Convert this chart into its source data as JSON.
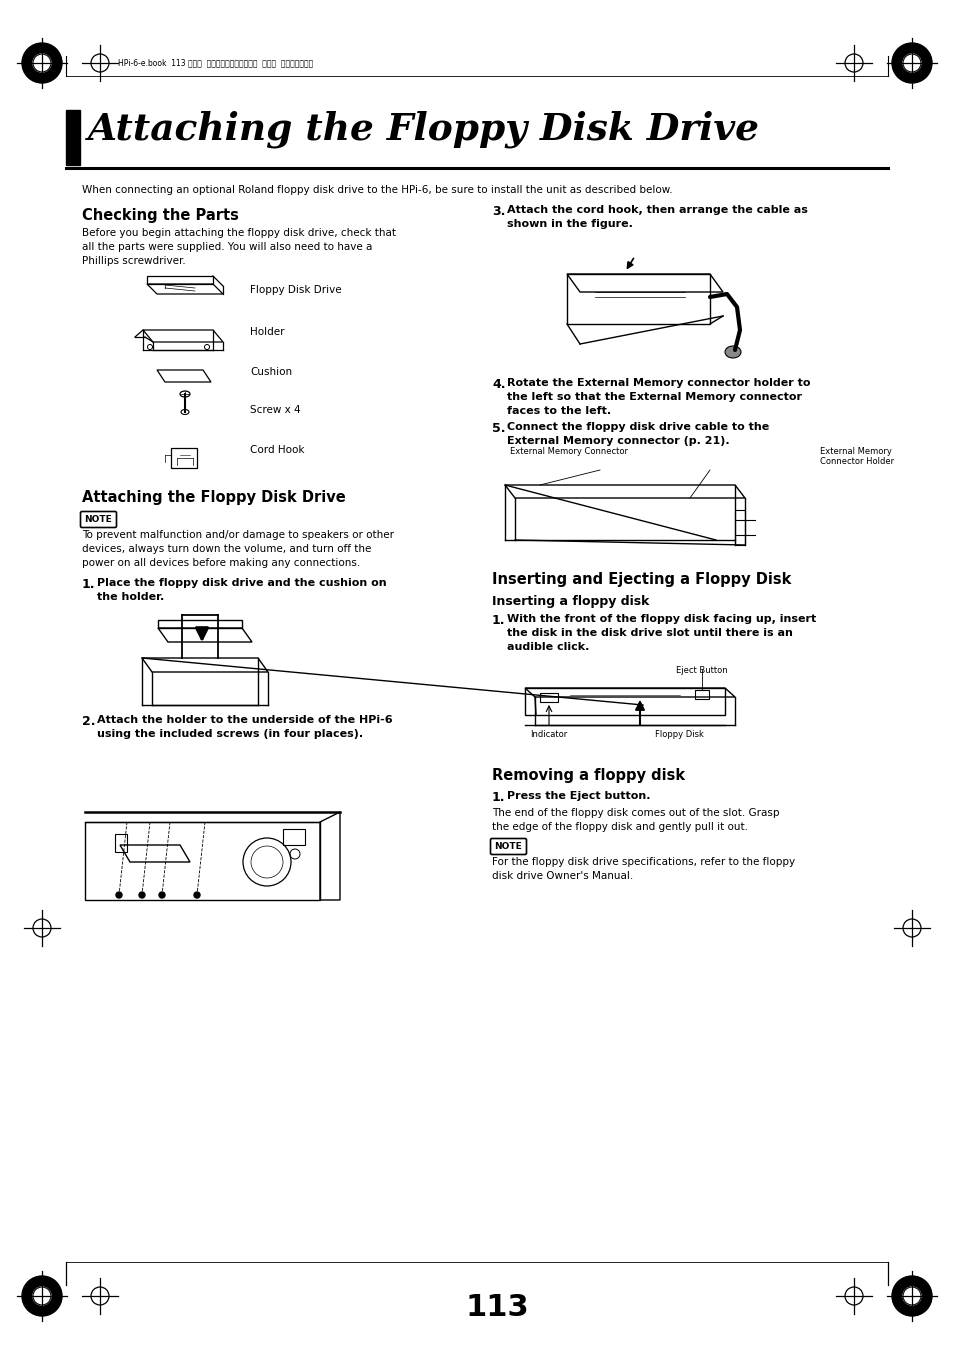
{
  "page_title": "Attaching the Floppy Disk Drive",
  "header_text": "HPi-6-e.book  113 ページ  ２００５年１１月１５日  火曜日  午後３時４９分",
  "intro_text": "When connecting an optional Roland floppy disk drive to the HPi-6, be sure to install the unit as described below.",
  "section1_title": "Checking the Parts",
  "section1_body": "Before you begin attaching the floppy disk drive, check that\nall the parts were supplied. You will also need to have a\nPhillips screwdriver.",
  "parts_list": [
    "Floppy Disk Drive",
    "Holder",
    "Cushion",
    "Screw x 4",
    "Cord Hook"
  ],
  "section2_title": "Attaching the Floppy Disk Drive",
  "note_text": "To prevent malfunction and/or damage to speakers or other\ndevices, always turn down the volume, and turn off the\npower on all devices before making any connections.",
  "step1_text": "Place the floppy disk drive and the cushion on\nthe holder.",
  "step2_text": "Attach the holder to the underside of the HPi-6\nusing the included screws (in four places).",
  "step3_text": "Attach the cord hook, then arrange the cable as\nshown in the figure.",
  "step4_text": "Rotate the External Memory connector holder to\nthe left so that the External Memory connector\nfaces to the left.",
  "step5_text": "Connect the floppy disk drive cable to the\nExternal Memory connector (p. 21).",
  "ext_mem_label": "External Memory Connector",
  "ext_mem_holder_label": "External Memory\nConnector Holder",
  "section3_title": "Inserting and Ejecting a Floppy Disk",
  "section3_sub": "Inserting a floppy disk",
  "insert_step1": "With the front of the floppy disk facing up, insert\nthe disk in the disk drive slot until there is an\naudible click.",
  "eject_button_label": "Eject Button",
  "indicator_label": "Indicator",
  "floppy_disk_label": "Floppy Disk",
  "section4_title": "Removing a floppy disk",
  "remove_step1_bold": "Press the Eject button.",
  "remove_step1_body": "The end of the floppy disk comes out of the slot. Grasp\nthe edge of the floppy disk and gently pull it out.",
  "note2_text": "For the floppy disk drive specifications, refer to the floppy\ndisk drive Owner's Manual.",
  "page_number": "113",
  "bg_color": "#ffffff"
}
